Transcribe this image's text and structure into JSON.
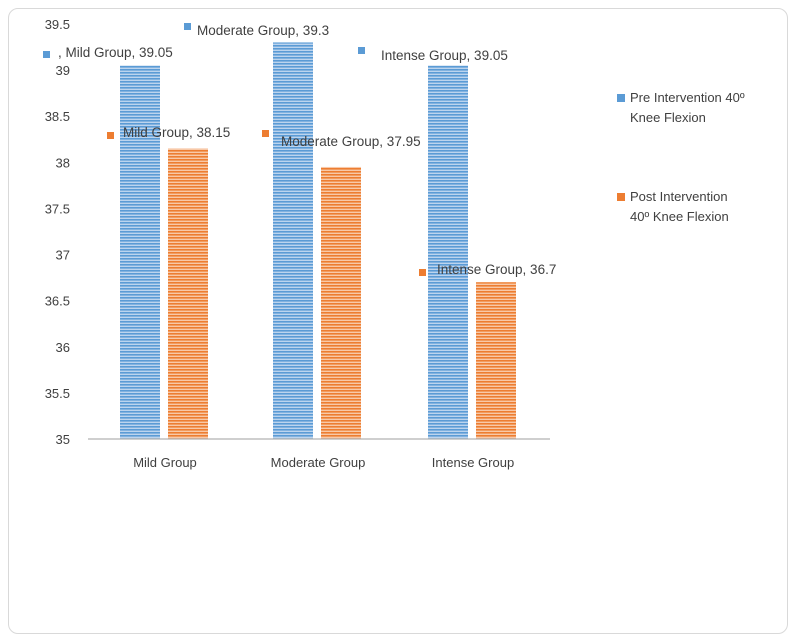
{
  "chart_data": {
    "type": "bar",
    "categories": [
      "Mild Group",
      "Moderate Group",
      "Intense Group"
    ],
    "series": [
      {
        "name": "Pre Intervention 40º Knee Flexion",
        "legend_lines": [
          "Pre Intervention 40º",
          "Knee Flexion"
        ],
        "values": [
          39.05,
          39.3,
          39.05
        ],
        "color": "#5b9bd5",
        "data_labels": [
          ", Mild Group, 39.05",
          "Moderate Group, 39.3",
          "Intense Group, 39.05"
        ]
      },
      {
        "name": "Post Intervention 40º Knee Flexion",
        "legend_lines": [
          "Post Intervention",
          "40º Knee Flexion"
        ],
        "values": [
          38.15,
          37.95,
          36.7
        ],
        "color": "#ed7d31",
        "data_labels": [
          "Mild Group, 38.15",
          "Moderate Group, 37.95",
          "Intense Group, 36.7"
        ]
      }
    ],
    "ylim": [
      35,
      39.5
    ],
    "yticks": [
      "35",
      "35.5",
      "36",
      "36.5",
      "37",
      "37.5",
      "38",
      "38.5",
      "39",
      "39.5"
    ],
    "legend_position": "right",
    "grid": false
  }
}
